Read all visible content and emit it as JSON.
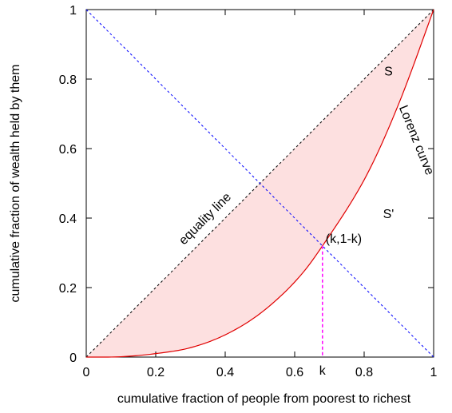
{
  "chart_data": {
    "type": "line",
    "title": "",
    "xlabel": "cumulative fraction of people from poorest to richest",
    "ylabel": "cumulative fraction of wealth held by them",
    "xlim": [
      0,
      1
    ],
    "ylim": [
      0,
      1
    ],
    "x_ticks": [
      0,
      0.2,
      0.4,
      0.6,
      0.8,
      1
    ],
    "x_tick_labels": [
      "0",
      "0.2",
      "0.4",
      "0.6",
      "0.8",
      "1"
    ],
    "y_ticks": [
      0,
      0.2,
      0.4,
      0.6,
      0.8,
      1
    ],
    "y_tick_labels": [
      "0",
      "0.2",
      "0.4",
      "0.6",
      "0.8",
      "1"
    ],
    "grid": false,
    "legend": "none",
    "series": [
      {
        "name": "equality line",
        "style": "dashed",
        "color": "#000000",
        "x": [
          0,
          1
        ],
        "y": [
          0,
          1
        ]
      },
      {
        "name": "Lorenz curve",
        "style": "solid",
        "color": "#e00000",
        "x": [
          0,
          0.1,
          0.2,
          0.3,
          0.4,
          0.5,
          0.6,
          0.68,
          0.8,
          0.9,
          1
        ],
        "y": [
          0,
          0.001,
          0.01,
          0.027,
          0.064,
          0.125,
          0.216,
          0.32,
          0.51,
          0.73,
          1
        ]
      },
      {
        "name": "",
        "style": "dashed",
        "color": "#0000ff",
        "x": [
          0,
          1
        ],
        "y": [
          1,
          0
        ]
      }
    ],
    "shaded_region": {
      "between": [
        "equality line",
        "Lorenz curve"
      ],
      "color": "#fde0e0"
    },
    "k_marker": {
      "x": 0.68,
      "y": 0.32,
      "color": "#ff00ff",
      "point_label": "(k,1-k)",
      "axis_label": "k"
    },
    "annotations": [
      {
        "text": "S",
        "x": 0.87,
        "y": 0.81
      },
      {
        "text": "S'",
        "x": 0.87,
        "y": 0.4
      },
      {
        "text": "equality line",
        "x": 0.35,
        "y": 0.39,
        "angle": 45
      },
      {
        "text": "Lorenz curve",
        "x": 0.94,
        "y": 0.62,
        "angle": -68
      }
    ]
  }
}
